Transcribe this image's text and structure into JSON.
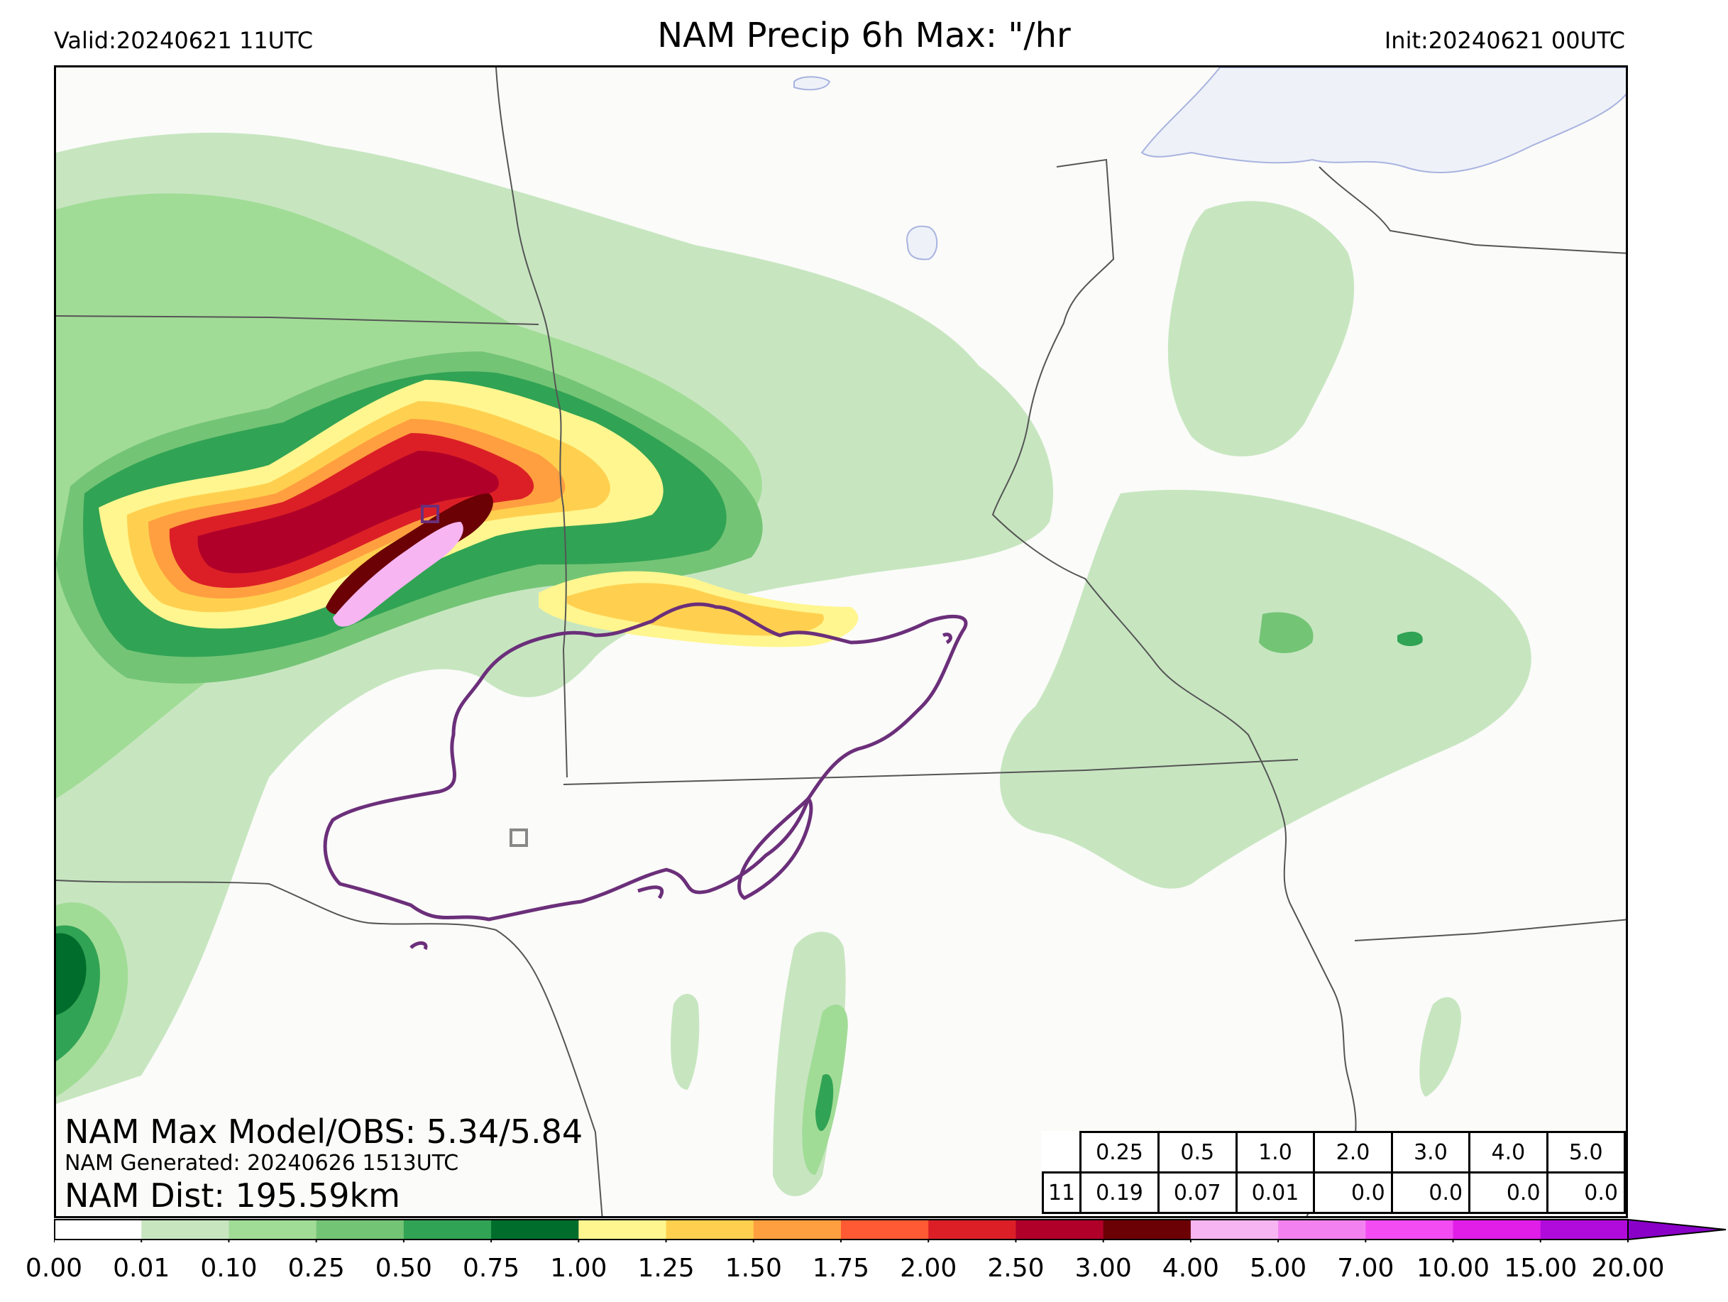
{
  "header": {
    "valid": "Valid:20240621 11UTC",
    "title": "NAM Precip 6h Max: \"/hr",
    "init": "Init:20240621 00UTC"
  },
  "stats": {
    "max_model_obs": "NAM Max Model/OBS: 5.34/5.84",
    "generated": "NAM Generated: 20240626 1513UTC",
    "distance": "NAM Dist: 195.59km"
  },
  "threshold_table": {
    "thresholds": [
      "0.25",
      "0.5",
      "1.0",
      "2.0",
      "3.0",
      "4.0",
      "5.0"
    ],
    "row_label": "11",
    "values": [
      "0.19",
      "0.07",
      "0.01",
      "0.0",
      "0.0",
      "0.0",
      "0.0"
    ]
  },
  "colorbar": {
    "ticks": [
      "0.00",
      "0.01",
      "0.10",
      "0.25",
      "0.50",
      "0.75",
      "1.00",
      "1.25",
      "1.50",
      "1.75",
      "2.00",
      "2.50",
      "3.00",
      "4.00",
      "5.00",
      "7.00",
      "10.00",
      "15.00",
      "20.00"
    ],
    "colors": [
      "#ffffff",
      "#c7e6c0",
      "#a1dc96",
      "#74c476",
      "#31a354",
      "#006d2c",
      "#fff68f",
      "#ffd04f",
      "#ff9f40",
      "#ff5a33",
      "#dc1f26",
      "#b0002a",
      "#6b0005",
      "#f7b5f2",
      "#f382f0",
      "#f24cf2",
      "#e11ee8",
      "#b10bdc",
      "#8a00c8"
    ],
    "extend_color": "#8a00c8"
  },
  "map_colors": {
    "water": "#eef2f8",
    "water_edge": "#a9b3e0",
    "obs_contour": "#6b2f7a",
    "border": "#555555"
  }
}
